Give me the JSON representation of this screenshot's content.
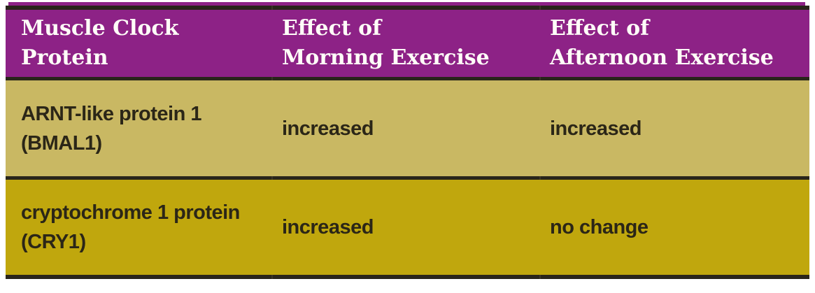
{
  "chart_data": {
    "type": "table",
    "title": "",
    "columns": [
      "Muscle Clock Protein",
      "Effect of Morning Exercise",
      "Effect of Afternoon Exercise"
    ],
    "rows": [
      [
        "ARNT-like protein 1 (BMAL1)",
        "increased",
        "increased"
      ],
      [
        "cryptochrome 1 protein (CRY1)",
        "increased",
        "no change"
      ]
    ]
  },
  "table": {
    "header": [
      {
        "line1": "Muscle Clock",
        "line2": "Protein"
      },
      {
        "line1": "Effect of",
        "line2": "Morning Exercise"
      },
      {
        "line1": "Effect of",
        "line2": "Afternoon Exercise"
      }
    ],
    "rows": [
      {
        "cells": [
          {
            "line1": "ARNT-like protein 1",
            "line2": "(BMAL1)"
          },
          {
            "line1": "increased"
          },
          {
            "line1": "increased"
          }
        ]
      },
      {
        "cells": [
          {
            "line1": "cryptochrome 1 protein",
            "line2": "(CRY1)"
          },
          {
            "line1": "increased"
          },
          {
            "line1": "no change"
          }
        ]
      }
    ]
  },
  "colors": {
    "header_bg": "#8d2286",
    "row1_bg": "#c9b863",
    "row2_bg": "#c0a70d",
    "rule": "#29251a",
    "header_text": "#fffdf8",
    "body_text": "#2b2617"
  }
}
